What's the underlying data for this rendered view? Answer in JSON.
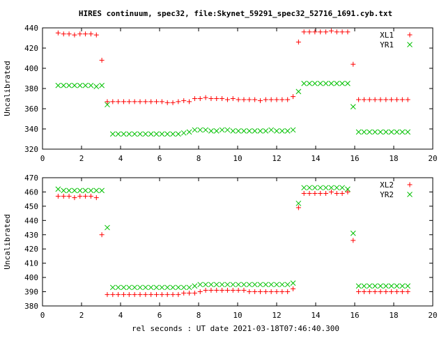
{
  "window": {
    "title": "HIRES continuum, spec32, file:Skynet_59291_spec32_52716_1691.cyb.txt"
  },
  "colors": {
    "background": "#ffffff",
    "axes": "#000000",
    "series_1": "#ff0000",
    "series_2": "#00c000"
  },
  "chart_data": [
    {
      "type": "scatter",
      "title": "HIRES continuum, spec32, file:Skynet_59291_spec32_52716_1691.cyb.txt",
      "xlabel": "",
      "ylabel": "Uncalibrated",
      "xlim": [
        0,
        20
      ],
      "ylim": [
        320,
        440
      ],
      "xticks": [
        0,
        2,
        4,
        6,
        8,
        10,
        12,
        14,
        16,
        18,
        20
      ],
      "yticks": [
        320,
        340,
        360,
        380,
        400,
        420,
        440
      ],
      "grid": false,
      "legend_position": "top-right",
      "x": [
        0.8,
        1.08,
        1.36,
        1.64,
        1.92,
        2.2,
        2.48,
        2.76,
        3.04,
        3.32,
        3.6,
        3.88,
        4.16,
        4.44,
        4.72,
        5.0,
        5.28,
        5.56,
        5.84,
        6.12,
        6.4,
        6.68,
        6.96,
        7.24,
        7.52,
        7.8,
        8.08,
        8.36,
        8.64,
        8.92,
        9.2,
        9.48,
        9.76,
        10.04,
        10.32,
        10.6,
        10.88,
        11.16,
        11.44,
        11.72,
        12.0,
        12.28,
        12.56,
        12.84,
        13.12,
        13.4,
        13.68,
        13.96,
        14.24,
        14.52,
        14.8,
        15.08,
        15.36,
        15.64,
        15.92,
        16.2,
        16.48,
        16.76,
        17.04,
        17.32,
        17.6,
        17.88,
        18.16,
        18.44,
        18.72
      ],
      "series": [
        {
          "name": "XL1",
          "marker": "plus",
          "color": "#ff0000",
          "values": [
            435,
            434,
            434,
            433,
            434,
            434,
            434,
            433,
            408,
            367,
            367,
            367,
            367,
            367,
            367,
            367,
            367,
            367,
            367,
            367,
            366,
            366,
            367,
            368,
            367,
            370,
            370,
            371,
            370,
            370,
            370,
            369,
            370,
            369,
            369,
            369,
            369,
            368,
            369,
            369,
            369,
            369,
            369,
            372,
            426,
            436,
            436,
            436,
            436,
            436,
            437,
            436,
            436,
            436,
            404,
            369,
            369,
            369,
            369,
            369,
            369,
            369,
            369,
            369,
            369
          ]
        },
        {
          "name": "YR1",
          "marker": "cross",
          "color": "#00c000",
          "values": [
            383,
            383,
            383,
            383,
            383,
            383,
            383,
            382,
            383,
            364,
            335,
            335,
            335,
            335,
            335,
            335,
            335,
            335,
            335,
            335,
            335,
            335,
            335,
            336,
            337,
            339,
            339,
            339,
            338,
            338,
            339,
            339,
            338,
            338,
            338,
            338,
            338,
            338,
            338,
            339,
            338,
            338,
            338,
            339,
            377,
            385,
            385,
            385,
            385,
            385,
            385,
            385,
            385,
            385,
            362,
            337,
            337,
            337,
            337,
            337,
            337,
            337,
            337,
            337,
            337
          ]
        }
      ]
    },
    {
      "type": "scatter",
      "title": "",
      "xlabel": "rel seconds : UT date 2021-03-18T07:46:40.300",
      "ylabel": "Uncalibrated",
      "xlim": [
        0,
        20
      ],
      "ylim": [
        380,
        470
      ],
      "xticks": [
        0,
        2,
        4,
        6,
        8,
        10,
        12,
        14,
        16,
        18,
        20
      ],
      "yticks": [
        380,
        390,
        400,
        410,
        420,
        430,
        440,
        450,
        460,
        470
      ],
      "grid": false,
      "legend_position": "top-right",
      "x": [
        0.8,
        1.08,
        1.36,
        1.64,
        1.92,
        2.2,
        2.48,
        2.76,
        3.04,
        3.32,
        3.6,
        3.88,
        4.16,
        4.44,
        4.72,
        5.0,
        5.28,
        5.56,
        5.84,
        6.12,
        6.4,
        6.68,
        6.96,
        7.24,
        7.52,
        7.8,
        8.08,
        8.36,
        8.64,
        8.92,
        9.2,
        9.48,
        9.76,
        10.04,
        10.32,
        10.6,
        10.88,
        11.16,
        11.44,
        11.72,
        12.0,
        12.28,
        12.56,
        12.84,
        13.12,
        13.4,
        13.68,
        13.96,
        14.24,
        14.52,
        14.8,
        15.08,
        15.36,
        15.64,
        15.92,
        16.2,
        16.48,
        16.76,
        17.04,
        17.32,
        17.6,
        17.88,
        18.16,
        18.44,
        18.72
      ],
      "series": [
        {
          "name": "XL2",
          "marker": "plus",
          "color": "#ff0000",
          "values": [
            457,
            457,
            457,
            456,
            457,
            457,
            457,
            456,
            430,
            388,
            388,
            388,
            388,
            388,
            388,
            388,
            388,
            388,
            388,
            388,
            388,
            388,
            388,
            389,
            389,
            389,
            390,
            391,
            391,
            391,
            391,
            391,
            391,
            391,
            391,
            390,
            390,
            390,
            390,
            390,
            390,
            390,
            390,
            392,
            449,
            459,
            459,
            459,
            459,
            459,
            460,
            459,
            459,
            460,
            426,
            390,
            390,
            390,
            390,
            390,
            390,
            390,
            390,
            390,
            390
          ]
        },
        {
          "name": "YR2",
          "marker": "cross",
          "color": "#00c000",
          "values": [
            462,
            461,
            461,
            461,
            461,
            461,
            461,
            461,
            461,
            435,
            393,
            393,
            393,
            393,
            393,
            393,
            393,
            393,
            393,
            393,
            393,
            393,
            393,
            393,
            393,
            394,
            395,
            395,
            395,
            395,
            395,
            395,
            395,
            395,
            395,
            395,
            395,
            395,
            395,
            395,
            395,
            395,
            395,
            396,
            452,
            463,
            463,
            463,
            463,
            463,
            463,
            463,
            463,
            462,
            431,
            394,
            394,
            394,
            394,
            394,
            394,
            394,
            394,
            394,
            394
          ]
        }
      ]
    }
  ]
}
